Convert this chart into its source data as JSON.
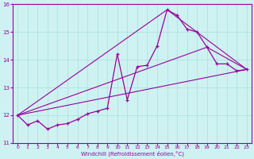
{
  "xlabel": "Windchill (Refroidissement éolien,°C)",
  "bg_color": "#cef2f2",
  "line_color": "#990099",
  "grid_color": "#aadddd",
  "xlim": [
    -0.5,
    23.5
  ],
  "ylim": [
    11,
    16
  ],
  "xticks": [
    0,
    1,
    2,
    3,
    4,
    5,
    6,
    7,
    8,
    9,
    10,
    11,
    12,
    13,
    14,
    15,
    16,
    17,
    18,
    19,
    20,
    21,
    22,
    23
  ],
  "yticks": [
    11,
    12,
    13,
    14,
    15,
    16
  ],
  "series_main_x": [
    0,
    1,
    2,
    3,
    4,
    5,
    6,
    7,
    8,
    9,
    10,
    11,
    12,
    13,
    14,
    15,
    16,
    17,
    18,
    19,
    20,
    21,
    22,
    23
  ],
  "series_main_y": [
    12.0,
    11.65,
    11.8,
    11.5,
    11.65,
    11.7,
    11.85,
    12.05,
    12.15,
    12.25,
    14.2,
    12.55,
    13.75,
    13.8,
    14.5,
    15.8,
    15.6,
    15.1,
    15.0,
    14.45,
    13.85,
    13.85,
    13.6,
    13.65
  ],
  "line1_x": [
    0,
    23
  ],
  "line1_y": [
    12.0,
    13.65
  ],
  "line2_x": [
    0,
    19,
    23
  ],
  "line2_y": [
    12.0,
    14.45,
    13.65
  ],
  "line3_x": [
    0,
    15,
    23
  ],
  "line3_y": [
    12.0,
    15.8,
    13.65
  ]
}
